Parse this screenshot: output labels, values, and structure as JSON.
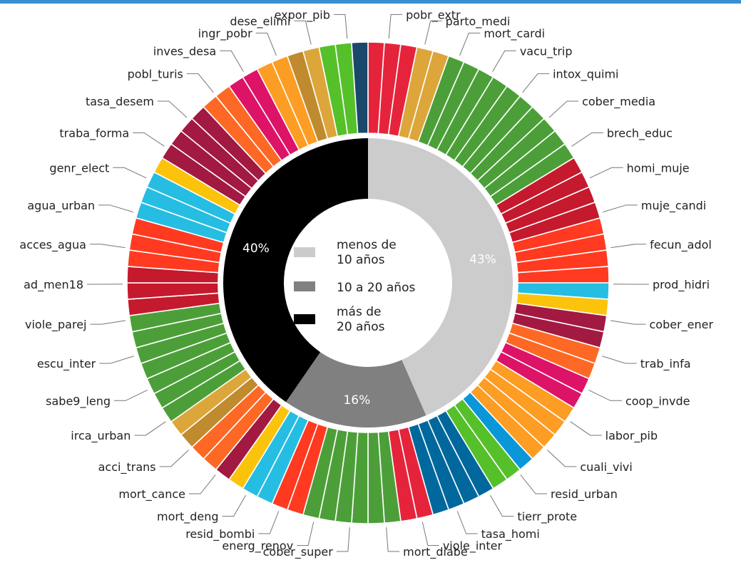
{
  "chart_data": {
    "type": "pie",
    "style": "nested-donut",
    "legend_placement": "center",
    "inner_ring": {
      "categories": [
        "menos de\n10 años",
        "10 a 20 años",
        "más de\n20 años"
      ],
      "values": [
        43,
        16,
        40
      ],
      "value_labels": [
        "43%",
        "16%",
        "40%"
      ],
      "colors": [
        "#cccccc",
        "#808080",
        "#000000"
      ]
    },
    "legend": [
      {
        "line1": "menos de",
        "line2": "10 años",
        "color": "#cccccc"
      },
      {
        "line1": "10 a 20 años",
        "line2": "",
        "color": "#808080"
      },
      {
        "line1": "más de",
        "line2": "20 años",
        "color": "#000000"
      }
    ],
    "outer_ring": {
      "segment_count": 92,
      "labels": [
        "pobr_extr",
        "parto_medi",
        "mort_cardi",
        "vacu_trip",
        "intox_quimi",
        "cober_media",
        "brech_educ",
        "homi_muje",
        "muje_candi",
        "fecun_adol",
        "prod_hidri",
        "cober_ener",
        "trab_infa",
        "coop_invde",
        "labor_pib",
        "cuali_vivi",
        "resid_urban",
        "tierr_prote",
        "tasa_homi",
        "viole_inter",
        "mort_diabe",
        "cober_super",
        "energ_renov",
        "resid_bombi",
        "mort_deng",
        "mort_cance",
        "acci_trans",
        "irca_urban",
        "sabe9_leng",
        "escu_inter",
        "viole_parej",
        "ad_men18",
        "acces_agua",
        "agua_urban",
        "genr_elect",
        "traba_forma",
        "tasa_desem",
        "pobl_turis",
        "inves_desa",
        "ingr_pobr",
        "dese_elimi",
        "expor_pib"
      ],
      "segment_colors": [
        "#e5243b",
        "#e5243b",
        "#e5243b",
        "#dda63a",
        "#dda63a",
        "#4c9f38",
        "#4c9f38",
        "#4c9f38",
        "#4c9f38",
        "#4c9f38",
        "#4c9f38",
        "#4c9f38",
        "#4c9f38",
        "#4c9f38",
        "#4c9f38",
        "#c5192d",
        "#c5192d",
        "#c5192d",
        "#c5192d",
        "#ff3a21",
        "#ff3a21",
        "#ff3a21",
        "#ff3a21",
        "#26bde2",
        "#fcc30b",
        "#a21942",
        "#a21942",
        "#fd6925",
        "#fd6925",
        "#dd1367",
        "#dd1367",
        "#fd9d24",
        "#fd9d24",
        "#fd9d24",
        "#fd9d24",
        "#0a97d9",
        "#56c02b",
        "#56c02b",
        "#00689d",
        "#00689d",
        "#00689d",
        "#00689d",
        "#e5243b",
        "#e5243b",
        "#4c9f38",
        "#4c9f38",
        "#4c9f38",
        "#4c9f38",
        "#4c9f38",
        "#4c9f38",
        "#ff3a21",
        "#ff3a21",
        "#26bde2",
        "#26bde2",
        "#fcc30b",
        "#a21942",
        "#fd6925",
        "#fd6925",
        "#bf8b2e",
        "#dda63a",
        "#4c9f38",
        "#4c9f38",
        "#4c9f38",
        "#4c9f38",
        "#4c9f38",
        "#4c9f38",
        "#4c9f38",
        "#c5192d",
        "#c5192d",
        "#c5192d",
        "#ff3a21",
        "#ff3a21",
        "#ff3a21",
        "#26bde2",
        "#26bde2",
        "#26bde2",
        "#fcc30b",
        "#a21942",
        "#a21942",
        "#a21942",
        "#a21942",
        "#fd6925",
        "#fd6925",
        "#dd1367",
        "#dd1367",
        "#fd9d24",
        "#fd9d24",
        "#bf8b2e",
        "#dda63a",
        "#56c02b",
        "#56c02b",
        "#19486a"
      ]
    }
  }
}
